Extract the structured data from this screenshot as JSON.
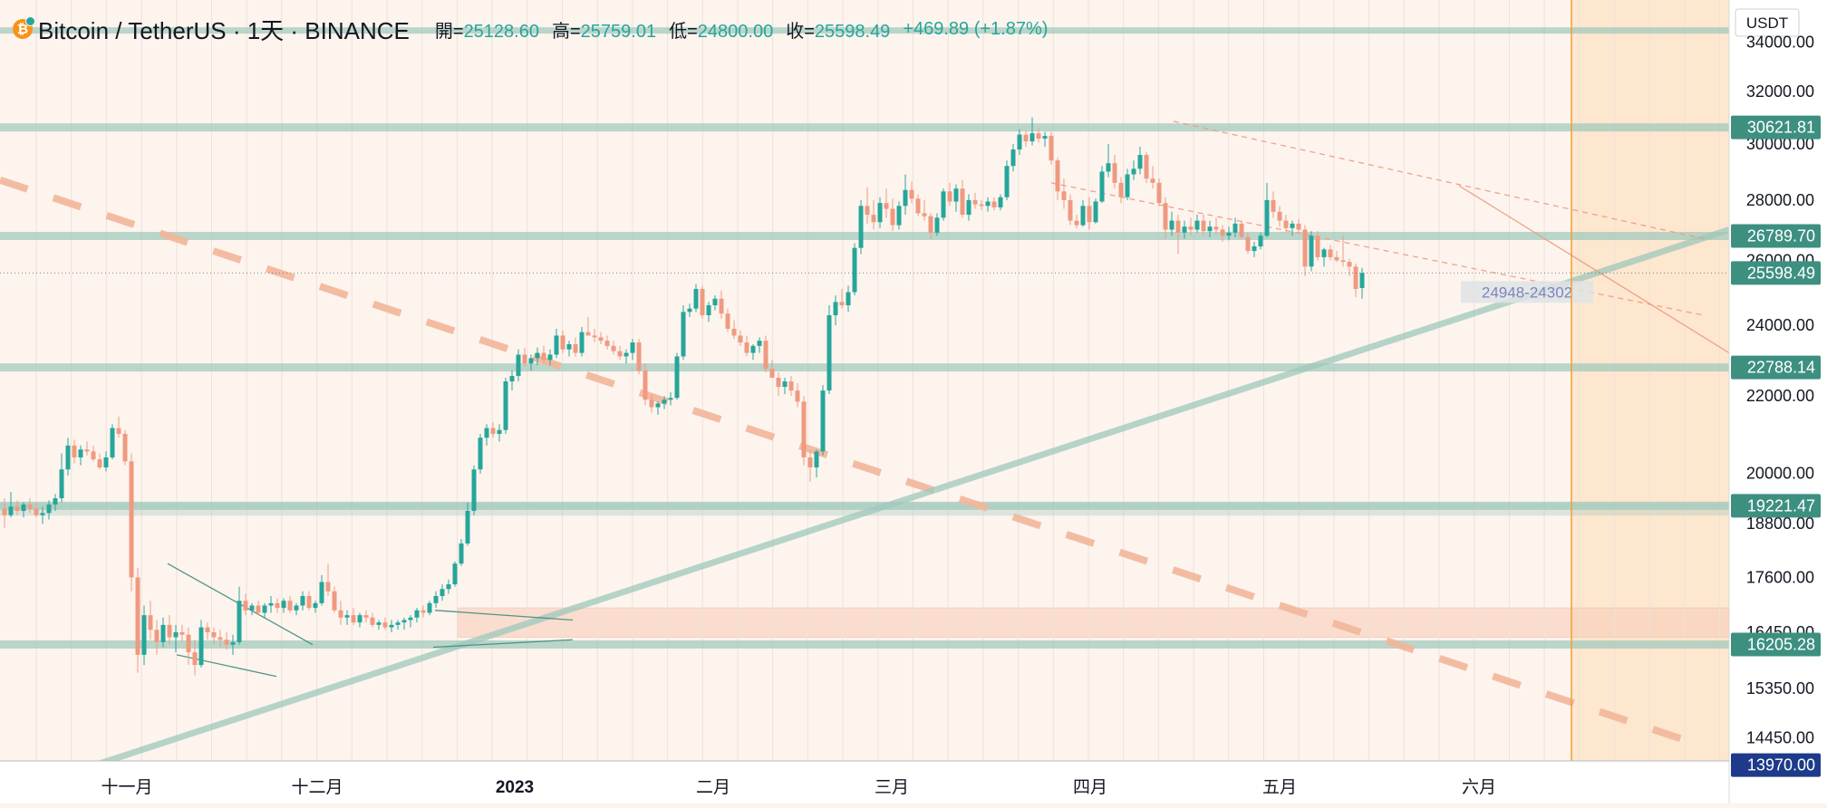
{
  "header": {
    "symbol": "Bitcoin / TetherUS · 1天 · BINANCE",
    "open_label": "開=",
    "open_value": "25128.60",
    "high_label": "高=",
    "high_value": "25759.01",
    "low_label": "低=",
    "low_value": "24800.00",
    "close_label": "收=",
    "close_value": "25598.49",
    "change": "+469.89 (+1.87%)"
  },
  "colors": {
    "background": "#fdf4ee",
    "up": "#26a69a",
    "down": "#ef9a80",
    "level_line": "#9fc8bc",
    "trend_dashed": "#f2b79a",
    "price_tag": "#3d9080",
    "last_price_tag": "#1e3a8a",
    "cursor_line": "#f0a030",
    "future_zone": "#fde4c8"
  },
  "chart_data": {
    "type": "candlestick",
    "currency": "USDT",
    "x_axis_labels": [
      "十一月",
      "十二月",
      "2023",
      "二月",
      "三月",
      "四月",
      "五月",
      "六月"
    ],
    "y_axis_labels": [
      "34000.00",
      "32000.00",
      "30000.00",
      "28000.00",
      "26000.00",
      "24000.00",
      "22000.00",
      "20000.00",
      "18800.00",
      "17600.00",
      "16450.00",
      "15350.00",
      "14450.00"
    ],
    "ylim": [
      13800,
      34600
    ],
    "y_scale": "log",
    "price_tags": [
      "30621.81",
      "26789.70",
      "25598.49",
      "22788.14",
      "19221.47",
      "16205.28",
      "13970.00"
    ],
    "horizontal_levels": [
      34500,
      30621.81,
      26789.7,
      22788.14,
      19221.47,
      16205.28,
      13970
    ],
    "last_price": 25598.49,
    "range_label": "24948-24302",
    "ohlc": [
      [
        19150,
        19400,
        18700,
        19000
      ],
      [
        19000,
        19550,
        18950,
        19200
      ],
      [
        19200,
        19350,
        19000,
        19100
      ],
      [
        19100,
        19300,
        18950,
        19250
      ],
      [
        19250,
        19400,
        19050,
        19150
      ],
      [
        19150,
        19300,
        18950,
        19000
      ],
      [
        19000,
        19200,
        18800,
        19050
      ],
      [
        19050,
        19350,
        18900,
        19250
      ],
      [
        19250,
        19500,
        19100,
        19400
      ],
      [
        19400,
        20500,
        19300,
        20100
      ],
      [
        20100,
        20900,
        19950,
        20700
      ],
      [
        20700,
        20850,
        20250,
        20400
      ],
      [
        20400,
        20700,
        20200,
        20600
      ],
      [
        20600,
        20800,
        20450,
        20550
      ],
      [
        20550,
        20700,
        20300,
        20350
      ],
      [
        20350,
        20500,
        20100,
        20150
      ],
      [
        20150,
        20550,
        20050,
        20400
      ],
      [
        20400,
        21250,
        20350,
        21150
      ],
      [
        21150,
        21450,
        20900,
        21000
      ],
      [
        21000,
        21100,
        20200,
        20300
      ],
      [
        20300,
        20500,
        17300,
        17600
      ],
      [
        17600,
        17800,
        15650,
        16000
      ],
      [
        16000,
        17000,
        15800,
        16800
      ],
      [
        16800,
        17100,
        16300,
        16500
      ],
      [
        16500,
        16700,
        16000,
        16250
      ],
      [
        16250,
        16750,
        16150,
        16600
      ],
      [
        16600,
        16800,
        16200,
        16350
      ],
      [
        16350,
        16600,
        16050,
        16450
      ],
      [
        16450,
        16600,
        16250,
        16400
      ],
      [
        16400,
        16550,
        15800,
        16050
      ],
      [
        16050,
        16300,
        15600,
        15800
      ],
      [
        15800,
        16700,
        15750,
        16550
      ],
      [
        16550,
        16650,
        16300,
        16450
      ],
      [
        16450,
        16550,
        16200,
        16350
      ],
      [
        16350,
        16500,
        16150,
        16300
      ],
      [
        16300,
        16450,
        16100,
        16200
      ],
      [
        16200,
        16400,
        16000,
        16250
      ],
      [
        16250,
        17400,
        16200,
        17100
      ],
      [
        17100,
        17250,
        16800,
        16900
      ],
      [
        16900,
        17050,
        16800,
        17000
      ],
      [
        17000,
        17100,
        16800,
        16850
      ],
      [
        16850,
        17050,
        16750,
        17000
      ],
      [
        17000,
        17200,
        16850,
        17050
      ],
      [
        17050,
        17150,
        16850,
        16950
      ],
      [
        16950,
        17150,
        16850,
        17100
      ],
      [
        17100,
        17200,
        16850,
        16900
      ],
      [
        16900,
        17050,
        16800,
        17000
      ],
      [
        17000,
        17300,
        16900,
        17200
      ],
      [
        17200,
        17300,
        16900,
        16950
      ],
      [
        16950,
        17100,
        16850,
        17050
      ],
      [
        17050,
        17650,
        17000,
        17500
      ],
      [
        17500,
        17900,
        17200,
        17300
      ],
      [
        17300,
        17400,
        16850,
        16900
      ],
      [
        16900,
        17100,
        16600,
        16750
      ],
      [
        16750,
        16900,
        16600,
        16800
      ],
      [
        16800,
        16950,
        16600,
        16650
      ],
      [
        16650,
        16850,
        16550,
        16800
      ],
      [
        16800,
        16900,
        16650,
        16750
      ],
      [
        16750,
        16850,
        16550,
        16600
      ],
      [
        16600,
        16700,
        16500,
        16650
      ],
      [
        16650,
        16750,
        16500,
        16550
      ],
      [
        16550,
        16700,
        16450,
        16600
      ],
      [
        16600,
        16700,
        16500,
        16650
      ],
      [
        16650,
        16750,
        16500,
        16700
      ],
      [
        16700,
        16800,
        16550,
        16750
      ],
      [
        16750,
        16950,
        16650,
        16900
      ],
      [
        16900,
        17000,
        16750,
        16850
      ],
      [
        16850,
        17100,
        16800,
        17050
      ],
      [
        17050,
        17300,
        16950,
        17200
      ],
      [
        17200,
        17450,
        17100,
        17350
      ],
      [
        17350,
        17550,
        17250,
        17450
      ],
      [
        17450,
        17950,
        17400,
        17900
      ],
      [
        17900,
        18450,
        17850,
        18350
      ],
      [
        18350,
        19300,
        18300,
        19100
      ],
      [
        19100,
        20200,
        19000,
        20100
      ],
      [
        20100,
        21000,
        20000,
        20900
      ],
      [
        20900,
        21250,
        20700,
        21150
      ],
      [
        21150,
        21300,
        20900,
        21000
      ],
      [
        21000,
        21250,
        20800,
        21100
      ],
      [
        21100,
        22500,
        21000,
        22400
      ],
      [
        22400,
        22700,
        22150,
        22550
      ],
      [
        22550,
        23300,
        22400,
        23150
      ],
      [
        23150,
        23350,
        22800,
        22900
      ],
      [
        22900,
        23150,
        22700,
        23050
      ],
      [
        23050,
        23350,
        22850,
        23200
      ],
      [
        23200,
        23400,
        22900,
        23000
      ],
      [
        23000,
        23300,
        22850,
        23150
      ],
      [
        23150,
        23900,
        23050,
        23700
      ],
      [
        23700,
        23850,
        23200,
        23300
      ],
      [
        23300,
        23550,
        23100,
        23450
      ],
      [
        23450,
        23650,
        23100,
        23200
      ],
      [
        23200,
        23950,
        23100,
        23800
      ],
      [
        23800,
        24250,
        23700,
        23700
      ],
      [
        23700,
        23900,
        23500,
        23650
      ],
      [
        23650,
        23800,
        23450,
        23550
      ],
      [
        23550,
        23700,
        23300,
        23400
      ],
      [
        23400,
        23550,
        23150,
        23250
      ],
      [
        23250,
        23400,
        23000,
        23100
      ],
      [
        23100,
        23300,
        22900,
        23200
      ],
      [
        23200,
        23600,
        23000,
        23500
      ],
      [
        23500,
        23600,
        22600,
        22700
      ],
      [
        22700,
        22900,
        21750,
        21900
      ],
      [
        21900,
        22050,
        21550,
        21700
      ],
      [
        21700,
        21850,
        21500,
        21800
      ],
      [
        21800,
        22000,
        21650,
        21900
      ],
      [
        21900,
        22100,
        21750,
        21950
      ],
      [
        21950,
        23200,
        21900,
        23100
      ],
      [
        23100,
        24600,
        23000,
        24400
      ],
      [
        24400,
        24650,
        24250,
        24500
      ],
      [
        24500,
        25250,
        24400,
        25100
      ],
      [
        25100,
        25200,
        24200,
        24300
      ],
      [
        24300,
        24700,
        24100,
        24600
      ],
      [
        24600,
        24900,
        24450,
        24800
      ],
      [
        24800,
        25050,
        24200,
        24350
      ],
      [
        24350,
        24500,
        23800,
        23900
      ],
      [
        23900,
        24150,
        23600,
        23700
      ],
      [
        23700,
        23850,
        23400,
        23500
      ],
      [
        23500,
        23700,
        23100,
        23200
      ],
      [
        23200,
        23450,
        23000,
        23400
      ],
      [
        23400,
        23650,
        23200,
        23550
      ],
      [
        23550,
        23700,
        22650,
        22750
      ],
      [
        22750,
        23000,
        22500,
        22500
      ],
      [
        22500,
        22650,
        22000,
        22250
      ],
      [
        22250,
        22500,
        22050,
        22400
      ],
      [
        22400,
        22550,
        22000,
        22150
      ],
      [
        22150,
        22350,
        21700,
        21850
      ],
      [
        21850,
        22000,
        20200,
        20400
      ],
      [
        20400,
        20600,
        19800,
        20150
      ],
      [
        20150,
        20600,
        19900,
        20550
      ],
      [
        20550,
        22300,
        20450,
        22150
      ],
      [
        22150,
        24600,
        22050,
        24300
      ],
      [
        24300,
        24900,
        24000,
        24700
      ],
      [
        24700,
        25100,
        24500,
        24600
      ],
      [
        24600,
        25200,
        24400,
        25000
      ],
      [
        25000,
        26550,
        24900,
        26400
      ],
      [
        26400,
        28000,
        26200,
        27800
      ],
      [
        27800,
        28450,
        27200,
        27500
      ],
      [
        27500,
        28000,
        27000,
        27250
      ],
      [
        27250,
        28100,
        27050,
        27900
      ],
      [
        27900,
        28400,
        27400,
        27700
      ],
      [
        27700,
        28050,
        26950,
        27150
      ],
      [
        27150,
        27950,
        27000,
        27800
      ],
      [
        27800,
        28900,
        27500,
        28350
      ],
      [
        28350,
        28650,
        27900,
        28050
      ],
      [
        28050,
        28200,
        27450,
        27550
      ],
      [
        27550,
        28000,
        27300,
        27450
      ],
      [
        27450,
        27550,
        26700,
        26900
      ],
      [
        26900,
        27550,
        26800,
        27400
      ],
      [
        27400,
        28400,
        27300,
        28300
      ],
      [
        28300,
        28600,
        27800,
        27950
      ],
      [
        27950,
        28550,
        27600,
        28400
      ],
      [
        28400,
        28700,
        27400,
        27500
      ],
      [
        27500,
        28200,
        27300,
        28000
      ],
      [
        28000,
        28250,
        27700,
        27850
      ],
      [
        27850,
        28000,
        27650,
        27800
      ],
      [
        27800,
        28100,
        27600,
        27950
      ],
      [
        27950,
        28100,
        27650,
        27750
      ],
      [
        27750,
        28200,
        27650,
        28100
      ],
      [
        28100,
        29400,
        28000,
        29200
      ],
      [
        29200,
        30000,
        29000,
        29800
      ],
      [
        29800,
        30550,
        29600,
        30350
      ],
      [
        30350,
        30500,
        29900,
        30100
      ],
      [
        30100,
        31000,
        29950,
        30400
      ],
      [
        30400,
        30600,
        30050,
        30200
      ],
      [
        30200,
        30450,
        29900,
        30300
      ],
      [
        30300,
        30450,
        29250,
        29400
      ],
      [
        29400,
        29500,
        28000,
        28300
      ],
      [
        28300,
        28750,
        27700,
        28000
      ],
      [
        28000,
        28200,
        27150,
        27300
      ],
      [
        27300,
        27500,
        27050,
        27150
      ],
      [
        27150,
        28000,
        27100,
        27800
      ],
      [
        27800,
        28100,
        27000,
        27250
      ],
      [
        27250,
        28050,
        27200,
        27950
      ],
      [
        27950,
        29200,
        27900,
        29000
      ],
      [
        29000,
        30000,
        28800,
        29300
      ],
      [
        29300,
        29600,
        28400,
        28600
      ],
      [
        28600,
        28800,
        27900,
        28100
      ],
      [
        28100,
        29100,
        28000,
        28900
      ],
      [
        28900,
        29400,
        28700,
        29100
      ],
      [
        29100,
        29900,
        28900,
        29600
      ],
      [
        29600,
        29700,
        28600,
        28750
      ],
      [
        28750,
        29200,
        28400,
        28600
      ],
      [
        28600,
        28750,
        27800,
        27900
      ],
      [
        27900,
        28100,
        26700,
        27000
      ],
      [
        27000,
        27600,
        26800,
        27300
      ],
      [
        27300,
        27500,
        26200,
        26900
      ],
      [
        26900,
        27300,
        26700,
        27100
      ],
      [
        27100,
        27400,
        26800,
        27000
      ],
      [
        27000,
        27500,
        26900,
        27300
      ],
      [
        27300,
        27500,
        26800,
        26950
      ],
      [
        26950,
        27300,
        26750,
        27100
      ],
      [
        27100,
        27400,
        26850,
        27000
      ],
      [
        27000,
        27150,
        26600,
        26800
      ],
      [
        26800,
        27100,
        26650,
        26900
      ],
      [
        26900,
        27400,
        26750,
        27200
      ],
      [
        27200,
        27300,
        26700,
        26750
      ],
      [
        26750,
        26900,
        26200,
        26300
      ],
      [
        26300,
        26600,
        26100,
        26450
      ],
      [
        26450,
        26900,
        26350,
        26800
      ],
      [
        26800,
        28600,
        26750,
        28000
      ],
      [
        28000,
        28300,
        27400,
        27600
      ],
      [
        27600,
        27800,
        27100,
        27300
      ],
      [
        27300,
        27500,
        26900,
        27050
      ],
      [
        27050,
        27300,
        26800,
        27200
      ],
      [
        27200,
        27350,
        26900,
        27000
      ],
      [
        27000,
        27150,
        25500,
        25800
      ],
      [
        25800,
        26950,
        25650,
        26800
      ],
      [
        26800,
        26950,
        26000,
        26100
      ],
      [
        26100,
        26400,
        25800,
        26350
      ],
      [
        26350,
        26500,
        26000,
        26100
      ],
      [
        26100,
        26300,
        25950,
        26000
      ],
      [
        26000,
        26800,
        25800,
        25950
      ],
      [
        25950,
        26050,
        25500,
        25800
      ],
      [
        25800,
        25900,
        24850,
        25100
      ],
      [
        25128.6,
        25759.01,
        24800,
        25598.49
      ]
    ]
  }
}
